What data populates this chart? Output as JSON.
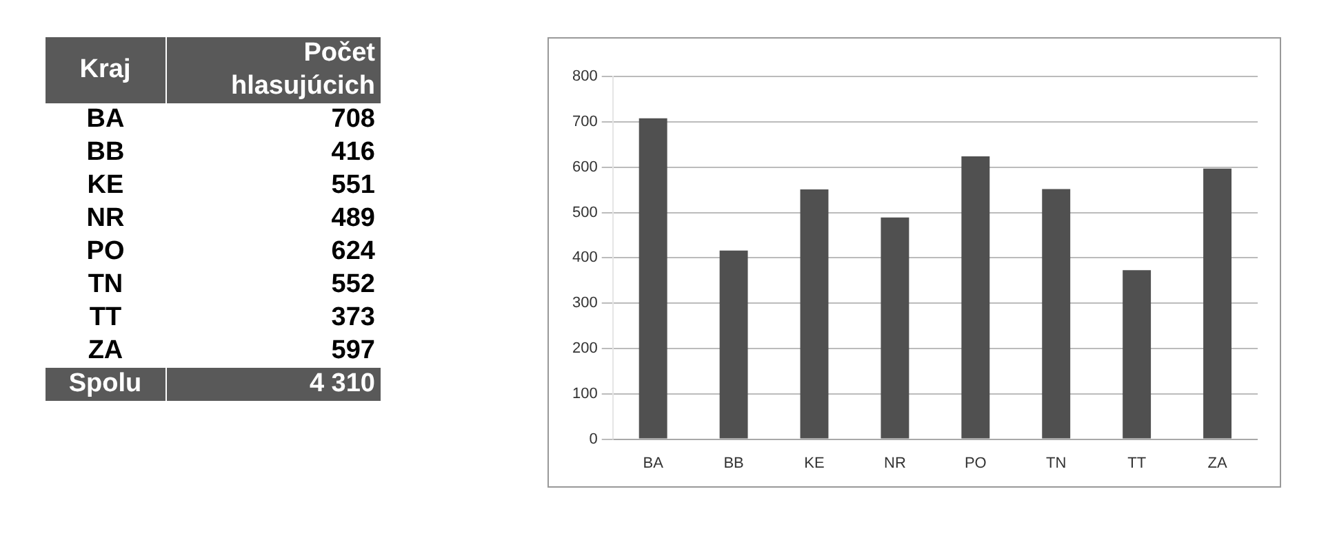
{
  "chart_data": [
    {
      "type": "other",
      "annotations": [
        "Kraj",
        "Počet hlasujúcich",
        "BA",
        "708",
        "BB",
        "416",
        "KE",
        "551",
        "NR",
        "489",
        "PO",
        "624",
        "TN",
        "552",
        "TT",
        "373",
        "ZA",
        "597",
        "Spolu",
        "4 310"
      ]
    },
    {
      "type": "bar",
      "categories": [
        "BA",
        "BB",
        "KE",
        "NR",
        "PO",
        "TN",
        "TT",
        "ZA"
      ],
      "values": [
        708,
        416,
        551,
        489,
        624,
        552,
        373,
        597
      ],
      "color": "#505050",
      "ylim": [
        0,
        800
      ],
      "yticks": [
        0,
        100,
        200,
        300,
        400,
        500,
        600,
        700,
        800
      ],
      "grid": "y"
    }
  ]
}
